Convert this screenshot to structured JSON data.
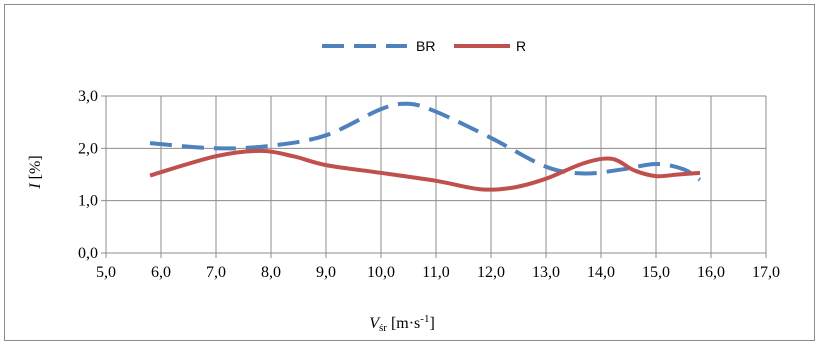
{
  "chart_data": {
    "type": "line",
    "xlim": [
      5.0,
      17.0
    ],
    "ylim": [
      0.0,
      3.0
    ],
    "x_ticks": [
      "5,0",
      "6,0",
      "7,0",
      "8,0",
      "9,0",
      "10,0",
      "11,0",
      "12,0",
      "13,0",
      "14,0",
      "15,0",
      "16,0",
      "17,0"
    ],
    "y_ticks": [
      "0,0",
      "1,0",
      "2,0",
      "3,0"
    ],
    "xlabel": {
      "main": "V",
      "sub": "śr",
      "unit_pre": " [m·s",
      "unit_sup": "-1",
      "unit_post": "]"
    },
    "ylabel": {
      "main": "I",
      "unit": " [%]"
    },
    "grid": true,
    "legend_position": "top",
    "series": [
      {
        "name": "BR",
        "color": "#4f81bd",
        "dash": "dashed",
        "x": [
          5.8,
          7.0,
          8.0,
          9.0,
          10.0,
          10.5,
          11.0,
          12.0,
          13.0,
          13.7,
          14.4,
          15.0,
          15.5,
          15.8
        ],
        "y": [
          2.1,
          2.0,
          2.05,
          2.25,
          2.75,
          2.85,
          2.7,
          2.2,
          1.65,
          1.52,
          1.6,
          1.7,
          1.6,
          1.4
        ]
      },
      {
        "name": "R",
        "color": "#c0504d",
        "dash": "solid",
        "x": [
          5.8,
          7.0,
          7.8,
          8.4,
          9.0,
          10.0,
          11.0,
          11.8,
          12.4,
          13.0,
          13.7,
          14.2,
          14.6,
          15.0,
          15.4,
          15.8
        ],
        "y": [
          1.48,
          1.85,
          1.95,
          1.85,
          1.68,
          1.53,
          1.38,
          1.22,
          1.25,
          1.42,
          1.72,
          1.8,
          1.58,
          1.47,
          1.5,
          1.53
        ]
      }
    ]
  }
}
